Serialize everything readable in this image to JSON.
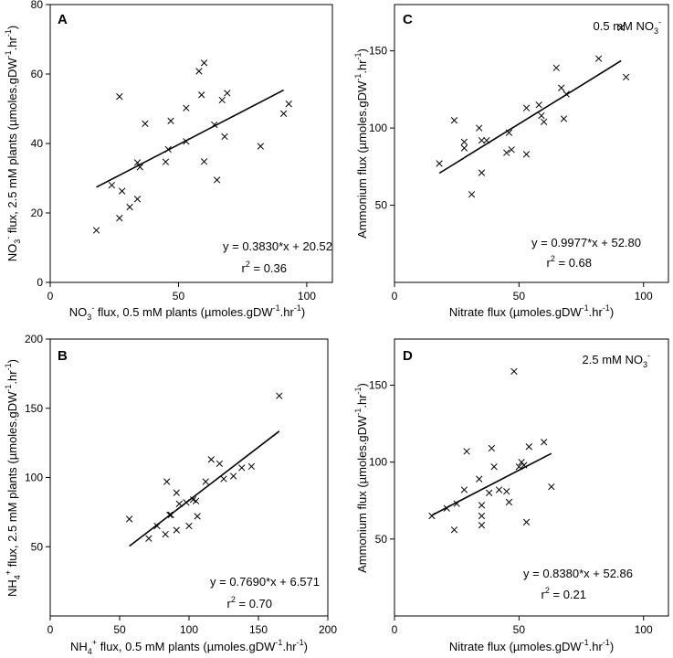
{
  "chart_data": [
    {
      "id": "A",
      "type": "scatter",
      "panel_label": "A",
      "xlim": [
        0,
        110
      ],
      "ylim": [
        0,
        80
      ],
      "xticks": [
        0,
        50,
        100
      ],
      "yticks": [
        0,
        20,
        40,
        60,
        80
      ],
      "xlabel": "NO3- flux, 0.5 mM plants (µmoles.gDW-1.hr-1)",
      "xlabel_parts": [
        "NO",
        "3",
        "-",
        " flux, 0.5 mM plants  (",
        "µ",
        "moles.gDW",
        "-1",
        ".hr",
        "-1",
        ")"
      ],
      "ylabel": "NO3- flux, 2.5 mM plants (µmoles.gDW-1.hr-1)",
      "ylabel_parts": [
        "NO",
        "3",
        "-",
        " flux, 2.5 mM plants (",
        "µ",
        "moles.gDW",
        "-1",
        ".hr",
        "-1",
        ")"
      ],
      "condition": "",
      "equation": "y = 0.3830*x + 20.52",
      "r2_prefix": "r",
      "r2_sup": "2",
      "r2_value": " = 0.36",
      "fit": {
        "slope": 0.383,
        "intercept": 20.52,
        "x_range": [
          18,
          91
        ]
      },
      "points": [
        [
          18,
          15
        ],
        [
          24,
          28
        ],
        [
          27,
          18.5
        ],
        [
          27,
          53.5
        ],
        [
          28,
          26.3
        ],
        [
          31,
          21.7
        ],
        [
          34,
          24
        ],
        [
          34,
          34.5
        ],
        [
          35,
          33.2
        ],
        [
          37,
          45.7
        ],
        [
          45,
          34.7
        ],
        [
          46,
          38.3
        ],
        [
          47,
          46.5
        ],
        [
          53,
          50.2
        ],
        [
          53,
          40.6
        ],
        [
          58,
          60.8
        ],
        [
          59,
          54
        ],
        [
          60,
          34.8
        ],
        [
          60,
          63.2
        ],
        [
          64,
          45.4
        ],
        [
          65,
          29.5
        ],
        [
          67,
          52.5
        ],
        [
          68,
          42
        ],
        [
          69,
          54.5
        ],
        [
          82,
          39.2
        ],
        [
          91,
          48.6
        ],
        [
          93,
          51.4
        ]
      ]
    },
    {
      "id": "C",
      "type": "scatter",
      "panel_label": "C",
      "xlim": [
        0,
        110
      ],
      "ylim": [
        0,
        180
      ],
      "xticks": [
        0,
        50,
        100
      ],
      "yticks": [
        50,
        100,
        150
      ],
      "xlabel": "Nitrate flux (µmoles.gDW-1.hr-1)",
      "xlabel_parts": [
        "Nitrate flux (",
        "µ",
        "moles.gDW",
        "-1",
        ".hr",
        "-1",
        ")"
      ],
      "ylabel": "Ammonium flux (µmoles.gDW-1.hr-1)",
      "ylabel_parts": [
        "Ammonium flux (",
        "µ",
        "moles.gDW",
        "-1",
        ".hr",
        "-1",
        ")"
      ],
      "condition": "0.5 mM NO3-",
      "condition_parts": [
        "0.5 mM NO",
        "3",
        "-"
      ],
      "equation": "y = 0.9977*x + 52.80",
      "r2_prefix": "r",
      "r2_sup": "2",
      "r2_value": " = 0.68",
      "fit": {
        "slope": 0.9977,
        "intercept": 52.8,
        "x_range": [
          18,
          91
        ]
      },
      "points": [
        [
          18,
          77
        ],
        [
          24,
          105
        ],
        [
          28,
          91
        ],
        [
          28,
          87
        ],
        [
          31,
          57
        ],
        [
          34,
          100
        ],
        [
          35,
          71
        ],
        [
          35,
          92
        ],
        [
          37,
          92
        ],
        [
          45,
          84
        ],
        [
          46,
          97
        ],
        [
          47,
          86
        ],
        [
          53,
          113
        ],
        [
          53,
          83
        ],
        [
          58,
          115
        ],
        [
          59,
          108
        ],
        [
          60,
          104
        ],
        [
          65,
          139
        ],
        [
          67,
          126
        ],
        [
          68,
          106
        ],
        [
          69,
          122
        ],
        [
          82,
          145
        ],
        [
          91,
          165
        ],
        [
          93,
          133
        ]
      ]
    },
    {
      "id": "B",
      "type": "scatter",
      "panel_label": "B",
      "xlim": [
        0,
        200
      ],
      "ylim": [
        0,
        200
      ],
      "xticks": [
        0,
        50,
        100,
        150,
        200
      ],
      "yticks": [
        50,
        100,
        150,
        200
      ],
      "xlabel": "NH4+ flux, 0.5 mM plants (µmoles.gDW-1.hr-1)",
      "xlabel_parts": [
        "NH",
        "4",
        "+",
        " flux, 0.5 mM plants (",
        "µ",
        "moles.gDW",
        "-1",
        ".hr",
        "-1",
        ")"
      ],
      "ylabel": "NH4+ flux, 2.5 mM plants (µmoles.gDW-1.hr-1)",
      "ylabel_parts": [
        "NH",
        "4",
        "+",
        " flux, 2.5 mM plants (",
        "µ",
        "moles.gDW",
        "-1",
        ".hr",
        "-1",
        ")"
      ],
      "condition": "",
      "equation": "y = 0.7690*x + 6.571",
      "r2_prefix": "r",
      "r2_sup": "2",
      "r2_value": " = 0.70",
      "fit": {
        "slope": 0.769,
        "intercept": 6.571,
        "x_range": [
          57,
          165
        ]
      },
      "points": [
        [
          57,
          70
        ],
        [
          71,
          56
        ],
        [
          77,
          65
        ],
        [
          83,
          59
        ],
        [
          84,
          97
        ],
        [
          86,
          73
        ],
        [
          87,
          73
        ],
        [
          91,
          89
        ],
        [
          91,
          62
        ],
        [
          93,
          81
        ],
        [
          98,
          82
        ],
        [
          100,
          65
        ],
        [
          103,
          84
        ],
        [
          105,
          83
        ],
        [
          106,
          72
        ],
        [
          112,
          97
        ],
        [
          116,
          113
        ],
        [
          122,
          110
        ],
        [
          125,
          99
        ],
        [
          132,
          101
        ],
        [
          138,
          107
        ],
        [
          145,
          108
        ],
        [
          165,
          159
        ]
      ]
    },
    {
      "id": "D",
      "type": "scatter",
      "panel_label": "D",
      "xlim": [
        0,
        110
      ],
      "ylim": [
        0,
        180
      ],
      "xticks": [
        0,
        50,
        100
      ],
      "yticks": [
        50,
        100,
        150
      ],
      "xlabel": "Nitrate flux (µmoles.gDW-1.hr-1)",
      "xlabel_parts": [
        "Nitrate flux (",
        "µ",
        "moles.gDW",
        "-1",
        ".hr",
        "-1",
        ")"
      ],
      "ylabel": "Ammonium flux (µmoles.gDW-1.hr-1)",
      "ylabel_parts": [
        "Ammonium flux (",
        "µ",
        "moles.gDW",
        "-1",
        ".hr",
        "-1",
        ")"
      ],
      "condition": "2.5 mM NO3-",
      "condition_parts": [
        "2.5 mM NO",
        "3",
        "-"
      ],
      "equation": "y = 0.8380*x + 52.86",
      "r2_prefix": "r",
      "r2_sup": "2",
      "r2_value": " = 0.21",
      "fit": {
        "slope": 0.838,
        "intercept": 52.86,
        "x_range": [
          15,
          63
        ]
      },
      "points": [
        [
          15,
          65
        ],
        [
          21,
          70
        ],
        [
          24,
          56
        ],
        [
          25,
          73
        ],
        [
          28,
          82
        ],
        [
          29,
          107
        ],
        [
          34,
          89
        ],
        [
          35,
          72
        ],
        [
          35,
          65
        ],
        [
          35,
          59
        ],
        [
          38,
          80
        ],
        [
          39,
          109
        ],
        [
          40,
          97
        ],
        [
          42,
          82
        ],
        [
          45,
          81
        ],
        [
          46,
          74
        ],
        [
          48,
          159
        ],
        [
          50,
          97
        ],
        [
          51,
          100
        ],
        [
          52,
          98
        ],
        [
          53,
          61
        ],
        [
          54,
          110
        ],
        [
          60,
          113
        ],
        [
          63,
          84
        ]
      ]
    }
  ]
}
